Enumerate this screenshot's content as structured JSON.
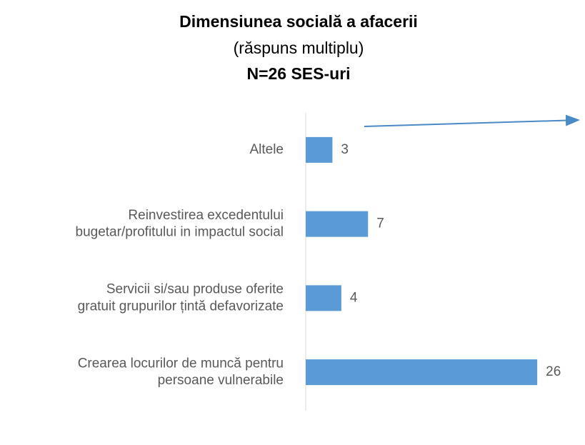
{
  "chart_data": {
    "type": "hbar",
    "title": "Dimensiunea socială a afacerii",
    "subtitle": "(răspuns multiplu)",
    "note": "N=26 SES-uri",
    "categories": [
      "Altele",
      "Reinvestirea excedentului\nbugetar/profitului in impactul social",
      "Servicii si/sau produse oferite\ngratuit grupurilor țintă defavorizate",
      "Crearea locurilor de muncă pentru\npersoane vulnerabile"
    ],
    "values": [
      3,
      7,
      4,
      26
    ],
    "color": "#5b9bd5",
    "xlim": [
      0,
      30
    ],
    "xticks": [
      0,
      5,
      10,
      15,
      20,
      25,
      30
    ],
    "grid": false
  }
}
